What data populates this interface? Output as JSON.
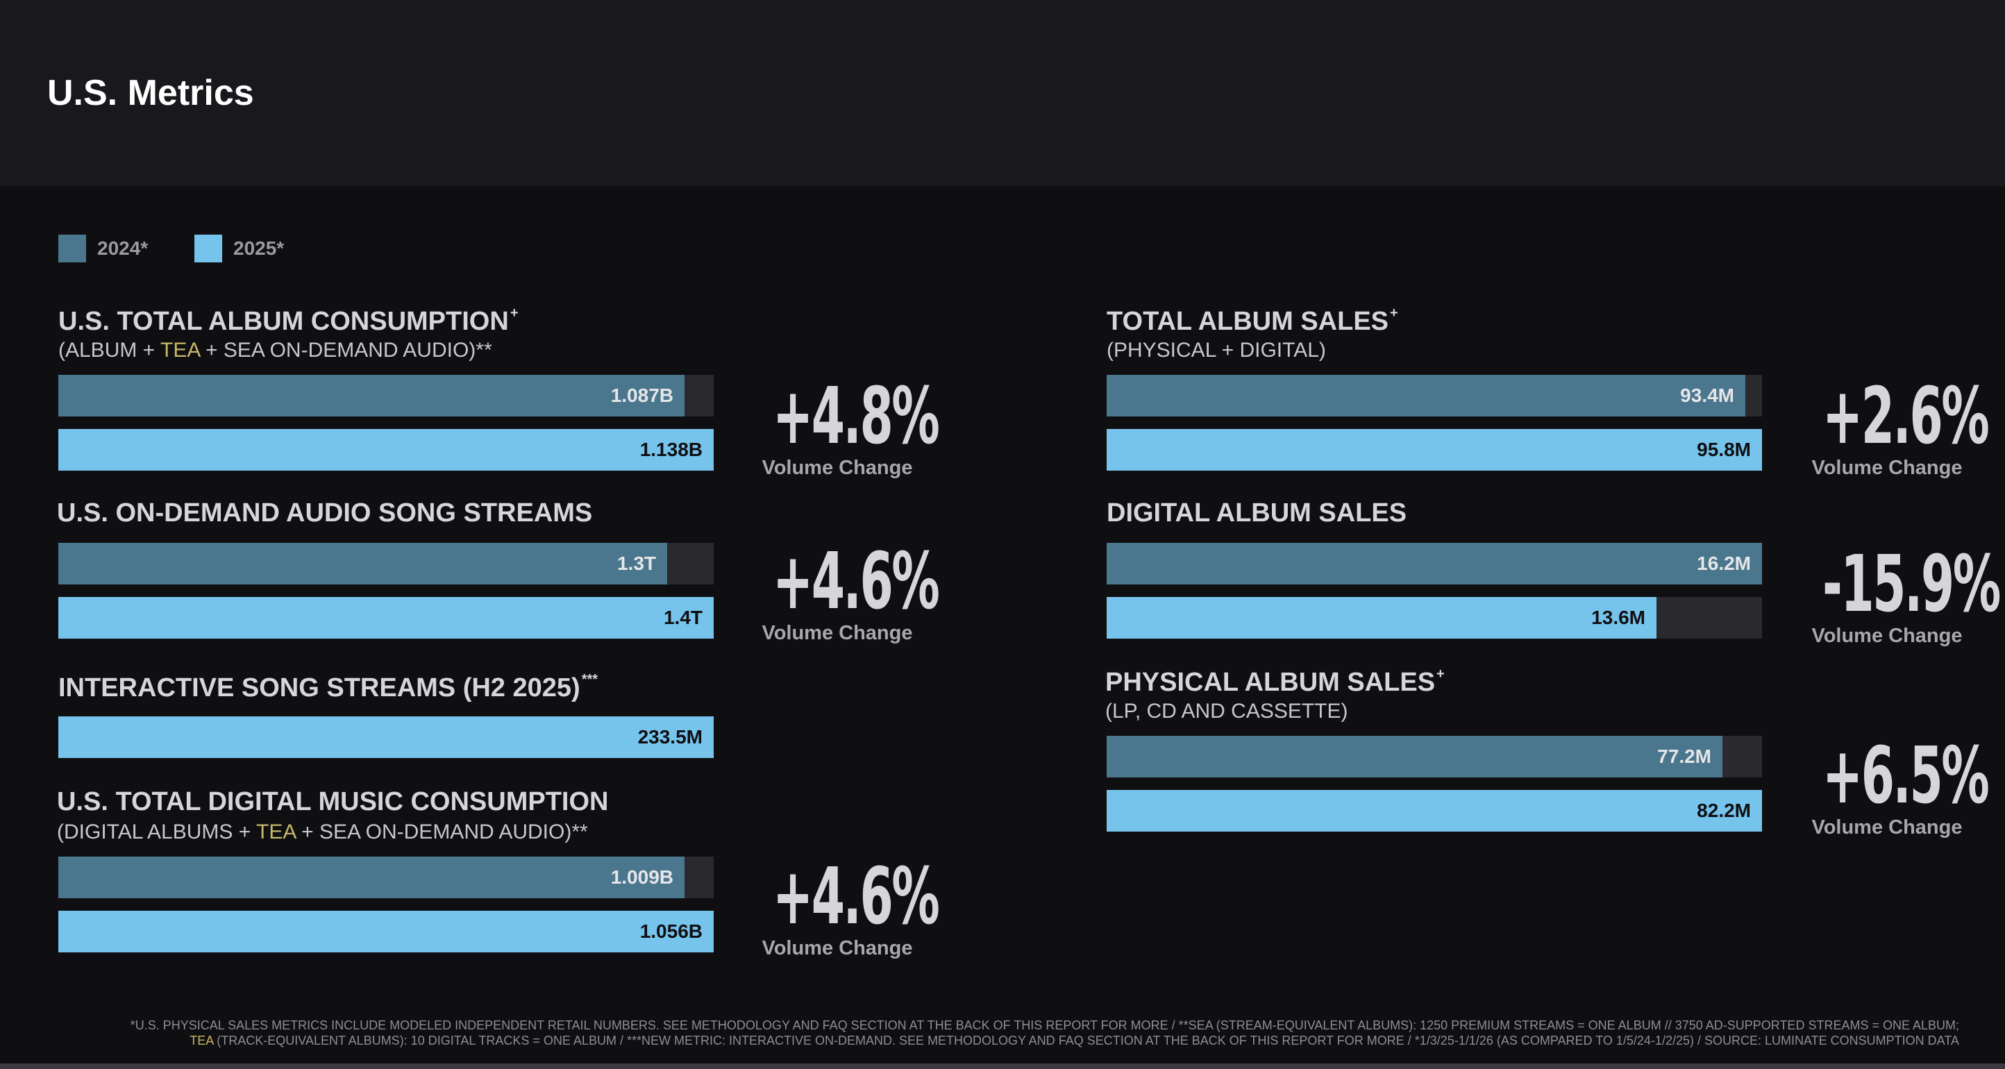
{
  "page": {
    "title": "U.S. Metrics"
  },
  "legend": [
    {
      "label": "2024*",
      "color": "#4b778e"
    },
    {
      "label": "2025*",
      "color": "#76c4ec"
    }
  ],
  "colors": {
    "bar_2024": "#4b778e",
    "bar_2025": "#76c4ec",
    "track": "#29292e",
    "text_on_2024": "#e6e6e8",
    "text_on_2025": "#0f0f12",
    "tea_highlight": "#c9b96a"
  },
  "metrics": {
    "total_album_consumption": {
      "title": "U.S. TOTAL ALBUM CONSUMPTION",
      "title_mark": "+",
      "subtitle_pre": "(ALBUM + ",
      "subtitle_tea": "TEA",
      "subtitle_post": " + SEA ON-DEMAND AUDIO)**",
      "bar_2024_label": "1.087B",
      "bar_2025_label": "1.138B",
      "change": "+4.8%",
      "change_label": "Volume Change"
    },
    "on_demand_audio_streams": {
      "title": "U.S. ON-DEMAND AUDIO SONG STREAMS",
      "bar_2024_label": "1.3T",
      "bar_2025_label": "1.4T",
      "change": "+4.6%",
      "change_label": "Volume Change"
    },
    "interactive_song_streams": {
      "title": "INTERACTIVE SONG STREAMS (H2 2025)",
      "title_mark": "***",
      "bar_2025_label": "233.5M"
    },
    "total_digital_music_consumption": {
      "title": "U.S. TOTAL DIGITAL MUSIC CONSUMPTION",
      "subtitle_pre": "(DIGITAL ALBUMS + ",
      "subtitle_tea": "TEA",
      "subtitle_post": " + SEA ON-DEMAND AUDIO)**",
      "bar_2024_label": "1.009B",
      "bar_2025_label": "1.056B",
      "change": "+4.6%",
      "change_label": "Volume Change"
    },
    "total_album_sales": {
      "title": "TOTAL ALBUM SALES",
      "title_mark": "+",
      "subtitle": "(PHYSICAL + DIGITAL)",
      "bar_2024_label": "93.4M",
      "bar_2025_label": "95.8M",
      "change": "+2.6%",
      "change_label": "Volume Change"
    },
    "digital_album_sales": {
      "title": "DIGITAL ALBUM SALES",
      "bar_2024_label": "16.2M",
      "bar_2025_label": "13.6M",
      "change": "-15.9%",
      "change_label": "Volume Change"
    },
    "physical_album_sales": {
      "title": "PHYSICAL ALBUM SALES",
      "title_mark": "+",
      "subtitle": "(LP, CD AND CASSETTE)",
      "bar_2024_label": "77.2M",
      "bar_2025_label": "82.2M",
      "change": "+6.5%",
      "change_label": "Volume Change"
    }
  },
  "chart_data": [
    {
      "type": "bar",
      "title": "U.S. TOTAL ALBUM CONSUMPTION",
      "categories": [
        "2024*",
        "2025*"
      ],
      "values": [
        1.087,
        1.138
      ],
      "unit": "B"
    },
    {
      "type": "bar",
      "title": "U.S. ON-DEMAND AUDIO SONG STREAMS",
      "categories": [
        "2024*",
        "2025*"
      ],
      "values": [
        1.3,
        1.4
      ],
      "unit": "T"
    },
    {
      "type": "bar",
      "title": "INTERACTIVE SONG STREAMS (H2 2025)",
      "categories": [
        "2025*"
      ],
      "values": [
        233.5
      ],
      "unit": "M"
    },
    {
      "type": "bar",
      "title": "U.S. TOTAL DIGITAL MUSIC CONSUMPTION",
      "categories": [
        "2024*",
        "2025*"
      ],
      "values": [
        1.009,
        1.056
      ],
      "unit": "B"
    },
    {
      "type": "bar",
      "title": "TOTAL ALBUM SALES",
      "categories": [
        "2024*",
        "2025*"
      ],
      "values": [
        93.4,
        95.8
      ],
      "unit": "M"
    },
    {
      "type": "bar",
      "title": "DIGITAL ALBUM SALES",
      "categories": [
        "2024*",
        "2025*"
      ],
      "values": [
        16.2,
        13.6
      ],
      "unit": "M"
    },
    {
      "type": "bar",
      "title": "PHYSICAL ALBUM SALES",
      "categories": [
        "2024*",
        "2025*"
      ],
      "values": [
        77.2,
        82.2
      ],
      "unit": "M"
    }
  ],
  "footnote": {
    "line1": "*U.S. PHYSICAL SALES METRICS INCLUDE MODELED INDEPENDENT RETAIL NUMBERS. SEE METHODOLOGY AND FAQ SECTION AT THE BACK OF THIS REPORT FOR MORE / **SEA (STREAM-EQUIVALENT ALBUMS): 1250 PREMIUM STREAMS = ONE ALBUM // 3750 AD-SUPPORTED STREAMS = ONE ALBUM;",
    "line2_tea": "TEA",
    "line2": " (TRACK-EQUIVALENT ALBUMS): 10 DIGITAL TRACKS = ONE ALBUM / ***NEW METRIC: INTERACTIVE ON-DEMAND. SEE METHODOLOGY AND FAQ SECTION AT THE BACK OF THIS REPORT FOR MORE / *1/3/25-1/1/26 (AS COMPARED TO 1/5/24-1/2/25) / SOURCE: LUMINATE CONSUMPTION DATA"
  }
}
